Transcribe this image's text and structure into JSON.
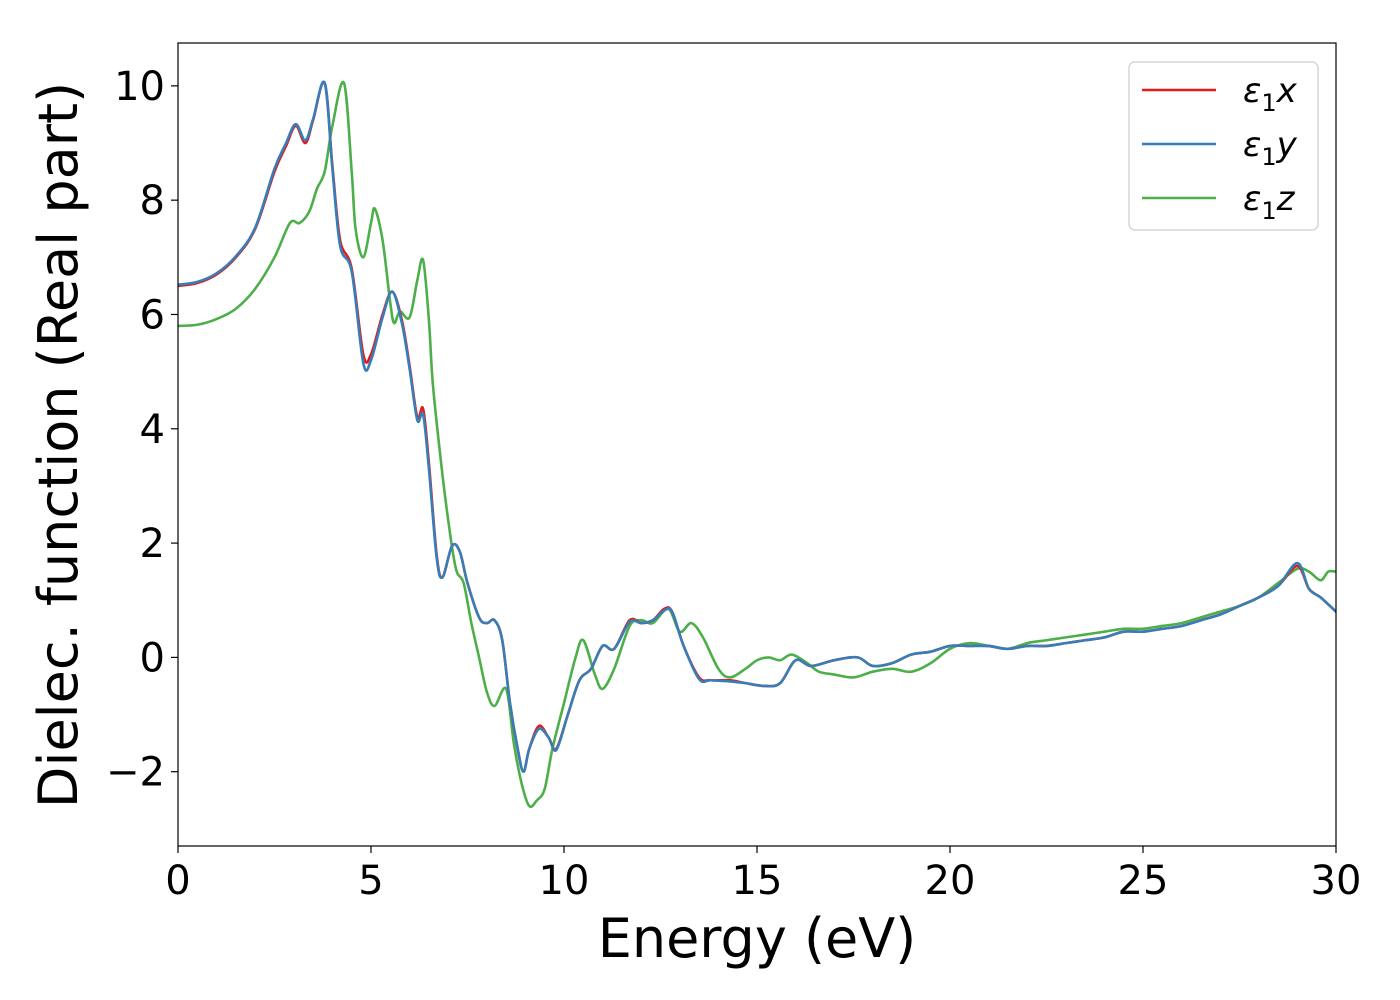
{
  "chart_data": {
    "type": "line",
    "title": "",
    "xlabel": "Energy (eV)",
    "ylabel": "Dielec. function (Real part)",
    "xlim": [
      0,
      30
    ],
    "ylim": [
      -3.3,
      10.75
    ],
    "xticks": [
      0,
      5,
      10,
      15,
      20,
      25,
      30
    ],
    "xtick_labels": [
      "0",
      "5",
      "10",
      "15",
      "20",
      "25",
      "30"
    ],
    "yticks": [
      -2,
      0,
      2,
      4,
      6,
      8,
      10
    ],
    "ytick_labels": [
      "−2",
      "0",
      "2",
      "4",
      "6",
      "8",
      "10"
    ],
    "grid": false,
    "legend_position": "top-right",
    "series": [
      {
        "name": "ε₁x",
        "label_main": "ε",
        "label_sub": "1",
        "label_tail": "x",
        "color": "#e41a1c",
        "points": [
          [
            0,
            6.5
          ],
          [
            0.5,
            6.55
          ],
          [
            1,
            6.7
          ],
          [
            1.5,
            7.0
          ],
          [
            2,
            7.5
          ],
          [
            2.5,
            8.5
          ],
          [
            2.8,
            8.95
          ],
          [
            3.05,
            9.3
          ],
          [
            3.3,
            9.0
          ],
          [
            3.5,
            9.4
          ],
          [
            3.8,
            10.05
          ],
          [
            4.0,
            8.6
          ],
          [
            4.2,
            7.3
          ],
          [
            4.5,
            6.8
          ],
          [
            4.8,
            5.3
          ],
          [
            5.0,
            5.3
          ],
          [
            5.3,
            6.0
          ],
          [
            5.55,
            6.4
          ],
          [
            5.8,
            5.9
          ],
          [
            6.0,
            5.1
          ],
          [
            6.2,
            4.2
          ],
          [
            6.35,
            4.35
          ],
          [
            6.5,
            3.4
          ],
          [
            6.7,
            1.8
          ],
          [
            6.85,
            1.4
          ],
          [
            7.1,
            1.95
          ],
          [
            7.3,
            1.85
          ],
          [
            7.5,
            1.3
          ],
          [
            7.8,
            0.7
          ],
          [
            8.0,
            0.6
          ],
          [
            8.2,
            0.65
          ],
          [
            8.4,
            0.3
          ],
          [
            8.6,
            -0.8
          ],
          [
            8.8,
            -1.6
          ],
          [
            8.95,
            -2.0
          ],
          [
            9.1,
            -1.6
          ],
          [
            9.35,
            -1.2
          ],
          [
            9.6,
            -1.4
          ],
          [
            9.8,
            -1.6
          ],
          [
            10.1,
            -1.0
          ],
          [
            10.4,
            -0.4
          ],
          [
            10.7,
            -0.2
          ],
          [
            11.0,
            0.2
          ],
          [
            11.3,
            0.15
          ],
          [
            11.7,
            0.65
          ],
          [
            12.0,
            0.6
          ],
          [
            12.3,
            0.65
          ],
          [
            12.6,
            0.85
          ],
          [
            12.8,
            0.8
          ],
          [
            13.1,
            0.2
          ],
          [
            13.5,
            -0.35
          ],
          [
            13.8,
            -0.4
          ],
          [
            14.3,
            -0.4
          ],
          [
            14.7,
            -0.45
          ],
          [
            15.2,
            -0.5
          ],
          [
            15.6,
            -0.45
          ],
          [
            16.0,
            -0.05
          ],
          [
            16.4,
            -0.15
          ],
          [
            17.0,
            -0.05
          ],
          [
            17.6,
            0.0
          ],
          [
            18.0,
            -0.15
          ],
          [
            18.5,
            -0.1
          ],
          [
            19.0,
            0.05
          ],
          [
            19.5,
            0.1
          ],
          [
            20.0,
            0.2
          ],
          [
            20.5,
            0.2
          ],
          [
            21.0,
            0.2
          ],
          [
            21.5,
            0.15
          ],
          [
            22.0,
            0.2
          ],
          [
            22.5,
            0.2
          ],
          [
            23.0,
            0.25
          ],
          [
            23.5,
            0.3
          ],
          [
            24.0,
            0.35
          ],
          [
            24.5,
            0.45
          ],
          [
            25.0,
            0.45
          ],
          [
            25.5,
            0.5
          ],
          [
            26.0,
            0.55
          ],
          [
            26.5,
            0.65
          ],
          [
            27.0,
            0.75
          ],
          [
            27.5,
            0.9
          ],
          [
            28.0,
            1.05
          ],
          [
            28.5,
            1.25
          ],
          [
            29.0,
            1.6
          ],
          [
            29.3,
            1.2
          ],
          [
            29.6,
            1.05
          ],
          [
            30.0,
            0.8
          ]
        ]
      },
      {
        "name": "ε₁y",
        "label_main": "ε",
        "label_sub": "1",
        "label_tail": "y",
        "color": "#377eb8",
        "points": [
          [
            0,
            6.52
          ],
          [
            0.5,
            6.57
          ],
          [
            1,
            6.72
          ],
          [
            1.5,
            7.02
          ],
          [
            2,
            7.52
          ],
          [
            2.5,
            8.55
          ],
          [
            2.8,
            9.0
          ],
          [
            3.05,
            9.33
          ],
          [
            3.3,
            9.05
          ],
          [
            3.5,
            9.42
          ],
          [
            3.8,
            10.05
          ],
          [
            4.0,
            8.55
          ],
          [
            4.2,
            7.2
          ],
          [
            4.5,
            6.75
          ],
          [
            4.8,
            5.15
          ],
          [
            5.0,
            5.2
          ],
          [
            5.3,
            5.95
          ],
          [
            5.55,
            6.4
          ],
          [
            5.8,
            5.85
          ],
          [
            6.0,
            5.05
          ],
          [
            6.2,
            4.15
          ],
          [
            6.35,
            4.25
          ],
          [
            6.5,
            3.3
          ],
          [
            6.7,
            1.75
          ],
          [
            6.85,
            1.4
          ],
          [
            7.1,
            1.95
          ],
          [
            7.3,
            1.85
          ],
          [
            7.5,
            1.3
          ],
          [
            7.8,
            0.7
          ],
          [
            8.0,
            0.6
          ],
          [
            8.2,
            0.65
          ],
          [
            8.4,
            0.3
          ],
          [
            8.6,
            -0.8
          ],
          [
            8.8,
            -1.6
          ],
          [
            8.95,
            -2.0
          ],
          [
            9.1,
            -1.6
          ],
          [
            9.35,
            -1.25
          ],
          [
            9.6,
            -1.4
          ],
          [
            9.8,
            -1.62
          ],
          [
            10.1,
            -1.0
          ],
          [
            10.4,
            -0.4
          ],
          [
            10.7,
            -0.2
          ],
          [
            11.0,
            0.2
          ],
          [
            11.3,
            0.15
          ],
          [
            11.7,
            0.62
          ],
          [
            12.0,
            0.6
          ],
          [
            12.3,
            0.65
          ],
          [
            12.6,
            0.82
          ],
          [
            12.8,
            0.8
          ],
          [
            13.1,
            0.2
          ],
          [
            13.5,
            -0.38
          ],
          [
            13.8,
            -0.4
          ],
          [
            14.3,
            -0.42
          ],
          [
            14.7,
            -0.45
          ],
          [
            15.2,
            -0.5
          ],
          [
            15.6,
            -0.45
          ],
          [
            16.0,
            -0.05
          ],
          [
            16.4,
            -0.15
          ],
          [
            17.0,
            -0.05
          ],
          [
            17.6,
            0.0
          ],
          [
            18.0,
            -0.15
          ],
          [
            18.5,
            -0.1
          ],
          [
            19.0,
            0.05
          ],
          [
            19.5,
            0.1
          ],
          [
            20.0,
            0.2
          ],
          [
            20.5,
            0.2
          ],
          [
            21.0,
            0.2
          ],
          [
            21.5,
            0.15
          ],
          [
            22.0,
            0.2
          ],
          [
            22.5,
            0.2
          ],
          [
            23.0,
            0.25
          ],
          [
            23.5,
            0.3
          ],
          [
            24.0,
            0.35
          ],
          [
            24.5,
            0.45
          ],
          [
            25.0,
            0.45
          ],
          [
            25.5,
            0.5
          ],
          [
            26.0,
            0.55
          ],
          [
            26.5,
            0.65
          ],
          [
            27.0,
            0.75
          ],
          [
            27.5,
            0.9
          ],
          [
            28.0,
            1.05
          ],
          [
            28.5,
            1.25
          ],
          [
            29.0,
            1.65
          ],
          [
            29.3,
            1.2
          ],
          [
            29.6,
            1.05
          ],
          [
            30.0,
            0.8
          ]
        ]
      },
      {
        "name": "ε₁z",
        "label_main": "ε",
        "label_sub": "1",
        "label_tail": "z",
        "color": "#4daf4a",
        "points": [
          [
            0,
            5.8
          ],
          [
            0.5,
            5.82
          ],
          [
            1,
            5.92
          ],
          [
            1.5,
            6.1
          ],
          [
            2,
            6.45
          ],
          [
            2.5,
            7.0
          ],
          [
            2.9,
            7.6
          ],
          [
            3.15,
            7.6
          ],
          [
            3.4,
            7.8
          ],
          [
            3.6,
            8.2
          ],
          [
            3.8,
            8.5
          ],
          [
            4.0,
            9.3
          ],
          [
            4.3,
            10.05
          ],
          [
            4.5,
            8.5
          ],
          [
            4.6,
            7.5
          ],
          [
            4.8,
            7.0
          ],
          [
            5.0,
            7.6
          ],
          [
            5.1,
            7.85
          ],
          [
            5.3,
            7.3
          ],
          [
            5.5,
            6.2
          ],
          [
            5.6,
            5.85
          ],
          [
            5.75,
            6.05
          ],
          [
            6.0,
            5.95
          ],
          [
            6.2,
            6.6
          ],
          [
            6.35,
            6.95
          ],
          [
            6.5,
            5.9
          ],
          [
            6.6,
            4.8
          ],
          [
            6.8,
            3.5
          ],
          [
            7.0,
            2.4
          ],
          [
            7.2,
            1.55
          ],
          [
            7.4,
            1.3
          ],
          [
            7.6,
            0.6
          ],
          [
            7.8,
            0.0
          ],
          [
            8.0,
            -0.6
          ],
          [
            8.2,
            -0.85
          ],
          [
            8.5,
            -0.55
          ],
          [
            8.7,
            -1.5
          ],
          [
            8.9,
            -2.2
          ],
          [
            9.1,
            -2.6
          ],
          [
            9.3,
            -2.5
          ],
          [
            9.5,
            -2.3
          ],
          [
            9.7,
            -1.6
          ],
          [
            10.0,
            -0.8
          ],
          [
            10.3,
            0.0
          ],
          [
            10.5,
            0.3
          ],
          [
            10.8,
            -0.3
          ],
          [
            11.0,
            -0.55
          ],
          [
            11.3,
            -0.2
          ],
          [
            11.7,
            0.55
          ],
          [
            12.0,
            0.65
          ],
          [
            12.3,
            0.6
          ],
          [
            12.7,
            0.85
          ],
          [
            13.0,
            0.45
          ],
          [
            13.3,
            0.6
          ],
          [
            13.6,
            0.35
          ],
          [
            14.0,
            -0.2
          ],
          [
            14.3,
            -0.35
          ],
          [
            14.7,
            -0.2
          ],
          [
            15.0,
            -0.05
          ],
          [
            15.3,
            0.0
          ],
          [
            15.6,
            -0.05
          ],
          [
            15.9,
            0.05
          ],
          [
            16.3,
            -0.1
          ],
          [
            16.6,
            -0.25
          ],
          [
            17.0,
            -0.3
          ],
          [
            17.5,
            -0.35
          ],
          [
            18.0,
            -0.25
          ],
          [
            18.5,
            -0.2
          ],
          [
            19.0,
            -0.25
          ],
          [
            19.5,
            -0.1
          ],
          [
            20.0,
            0.15
          ],
          [
            20.5,
            0.25
          ],
          [
            21.0,
            0.2
          ],
          [
            21.5,
            0.15
          ],
          [
            22.0,
            0.25
          ],
          [
            22.5,
            0.3
          ],
          [
            23.0,
            0.35
          ],
          [
            23.5,
            0.4
          ],
          [
            24.0,
            0.45
          ],
          [
            24.5,
            0.5
          ],
          [
            25.0,
            0.5
          ],
          [
            25.5,
            0.55
          ],
          [
            26.0,
            0.6
          ],
          [
            26.5,
            0.7
          ],
          [
            27.0,
            0.8
          ],
          [
            27.5,
            0.9
          ],
          [
            28.0,
            1.05
          ],
          [
            28.5,
            1.3
          ],
          [
            29.0,
            1.55
          ],
          [
            29.3,
            1.5
          ],
          [
            29.6,
            1.35
          ],
          [
            29.8,
            1.5
          ],
          [
            30.0,
            1.5
          ]
        ]
      }
    ]
  }
}
